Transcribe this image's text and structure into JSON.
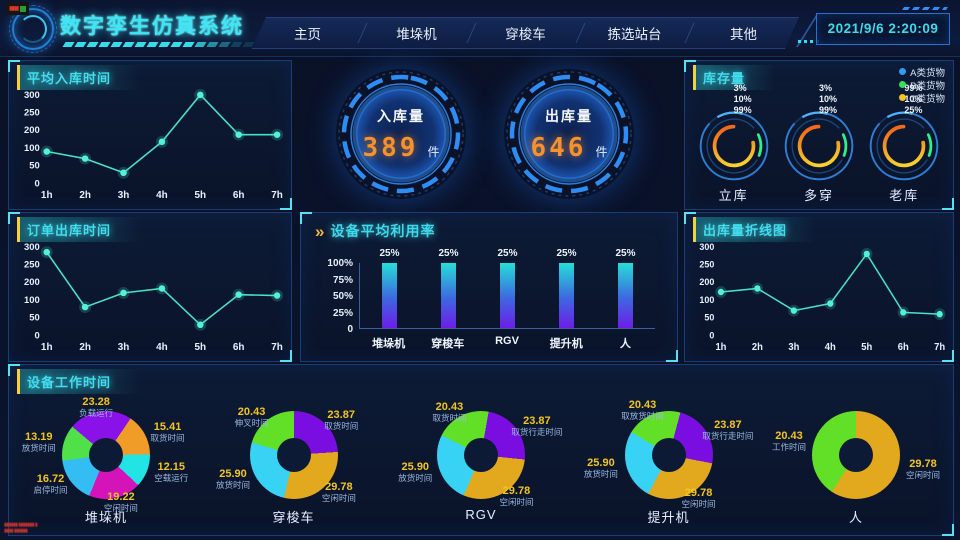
{
  "header": {
    "title": "数字孪生仿真系统",
    "nav": [
      "主页",
      "堆垛机",
      "穿梭车",
      "拣选站台",
      "其他"
    ],
    "datetime": "2021/9/6 2:20:09"
  },
  "watermark": {
    "chip": "▮▮▮▮",
    "line1": "▮▮▮▮▮▮ ▮▮▮▮▮▮▮ ▮",
    "line2": "▮▮▮▮ ▮▮▮▮▮▮"
  },
  "kpi": {
    "inbound": {
      "label": "入库量",
      "value": "389",
      "unit": "件"
    },
    "outbound": {
      "label": "出库量",
      "value": "646",
      "unit": "件"
    }
  },
  "panels": {
    "avg_inbound": {
      "title": "平均入库时间"
    },
    "order_outbound": {
      "title": "订单出库时间"
    },
    "inventory": {
      "title": "库存量"
    },
    "utilization": {
      "title": "设备平均利用率"
    },
    "outbound_line": {
      "title": "出库量折线图"
    },
    "work_time": {
      "title": "设备工作时间"
    }
  },
  "chart_data": [
    {
      "id": "avg_inbound",
      "type": "line",
      "title": "平均入库时间",
      "x": [
        "1h",
        "2h",
        "3h",
        "4h",
        "5h",
        "6h",
        "7h"
      ],
      "values": [
        90,
        70,
        30,
        135,
        300,
        175,
        175
      ],
      "y_ticks": [
        300,
        250,
        200,
        100,
        50,
        0
      ],
      "line_color": "#49e2c2",
      "grid": false
    },
    {
      "id": "order_outbound",
      "type": "line",
      "title": "订单出库时间",
      "x": [
        "1h",
        "2h",
        "3h",
        "4h",
        "5h",
        "6h",
        "7h"
      ],
      "values": [
        285,
        80,
        140,
        165,
        30,
        130,
        125
      ],
      "y_ticks": [
        300,
        250,
        200,
        100,
        50,
        0
      ],
      "line_color": "#49e2c2",
      "grid": false
    },
    {
      "id": "outbound_line",
      "type": "line",
      "title": "出库量折线图",
      "x": [
        "1h",
        "2h",
        "3h",
        "4h",
        "5h",
        "6h",
        "7h"
      ],
      "values": [
        145,
        165,
        70,
        90,
        280,
        65,
        60
      ],
      "y_ticks": [
        300,
        250,
        200,
        100,
        50,
        0
      ],
      "line_color": "#49e2c2",
      "grid": false
    },
    {
      "id": "utilization",
      "type": "bar",
      "title": "设备平均利用率",
      "categories": [
        "堆垛机",
        "穿梭车",
        "RGV",
        "提升机",
        "人"
      ],
      "values": [
        25,
        25,
        25,
        25,
        25
      ],
      "value_labels": [
        "25%",
        "25%",
        "25%",
        "25%",
        "25%"
      ],
      "bar_display_pct": [
        100,
        100,
        100,
        100,
        100
      ],
      "y_ticks": [
        "100%",
        "75%",
        "50%",
        "25%",
        "0"
      ],
      "bar_color_top": "#25ded6",
      "bar_color_bottom": "#6d1de8"
    },
    {
      "id": "inventory",
      "type": "ring-gauge-set",
      "title": "库存量",
      "legend": [
        {
          "label": "A类货物",
          "color": "#2e9bf5"
        },
        {
          "label": "B类货物",
          "color": "#35e05a"
        },
        {
          "label": "C类货物",
          "color": "#f2c51f"
        }
      ],
      "gauges": [
        {
          "name": "立库",
          "values": [
            "3%",
            "10%",
            "99%"
          ]
        },
        {
          "name": "多穿",
          "values": [
            "3%",
            "10%",
            "99%"
          ]
        },
        {
          "name": "老库",
          "values": [
            "99%",
            "10%",
            "25%"
          ]
        }
      ]
    },
    {
      "id": "work_time",
      "type": "donut-set",
      "title": "设备工作时间",
      "donuts": [
        {
          "name": "堆垛机",
          "rotation": -50,
          "slices": [
            {
              "label": "负载运行",
              "value": 23.28,
              "color": "#8a12e8"
            },
            {
              "label": "取货时间",
              "value": 15.41,
              "color": "#f09c28"
            },
            {
              "label": "空载运行",
              "value": 12.15,
              "color": "#22e4e4"
            },
            {
              "label": "空闲时间",
              "value": 19.22,
              "color": "#d413b8"
            },
            {
              "label": "启停时间",
              "value": 16.72,
              "color": "#33bdf2"
            },
            {
              "label": "放货时间",
              "value": 13.19,
              "color": "#4fe04a"
            }
          ]
        },
        {
          "name": "穿梭车",
          "rotation": 0,
          "slices": [
            {
              "label": "取货时间",
              "value": 23.87,
              "color": "#7a0ee0"
            },
            {
              "label": "空闲时间",
              "value": 29.78,
              "color": "#e2a91f"
            },
            {
              "label": "放货时间",
              "value": 25.9,
              "color": "#38d2f5"
            },
            {
              "label": "伸叉时间",
              "value": 20.43,
              "color": "#62e028"
            }
          ]
        },
        {
          "name": "RGV",
          "rotation": 10,
          "slices": [
            {
              "label": "取货行走时间",
              "value": 23.87,
              "color": "#7a0ee0"
            },
            {
              "label": "空闲时间",
              "value": 29.78,
              "color": "#e2a91f"
            },
            {
              "label": "放货时间",
              "value": 25.9,
              "color": "#38d2f5"
            },
            {
              "label": "取货时间",
              "value": 20.43,
              "color": "#62e028"
            }
          ]
        },
        {
          "name": "提升机",
          "rotation": 15,
          "slices": [
            {
              "label": "取货行走时间",
              "value": 23.87,
              "color": "#7a0ee0"
            },
            {
              "label": "空闲时间",
              "value": 29.78,
              "color": "#e2a91f"
            },
            {
              "label": "放货时间",
              "value": 25.9,
              "color": "#38d2f5"
            },
            {
              "label": "取放货时间",
              "value": 20.43,
              "color": "#62e028"
            }
          ]
        },
        {
          "name": "人",
          "rotation": 0,
          "slices": [
            {
              "label": "空闲时间",
              "value": 29.78,
              "color": "#e2a91f"
            },
            {
              "label": "工作时间",
              "value": 20.43,
              "color": "#62e028"
            }
          ]
        }
      ]
    }
  ],
  "colors": {
    "accent_cyan": "#3fe0f0",
    "accent_yellow": "#f2c51f",
    "value_orange": "#f5912e",
    "line_teal": "#49e2c2",
    "panel_border": "#1c3d74",
    "background": "#0a1126"
  }
}
